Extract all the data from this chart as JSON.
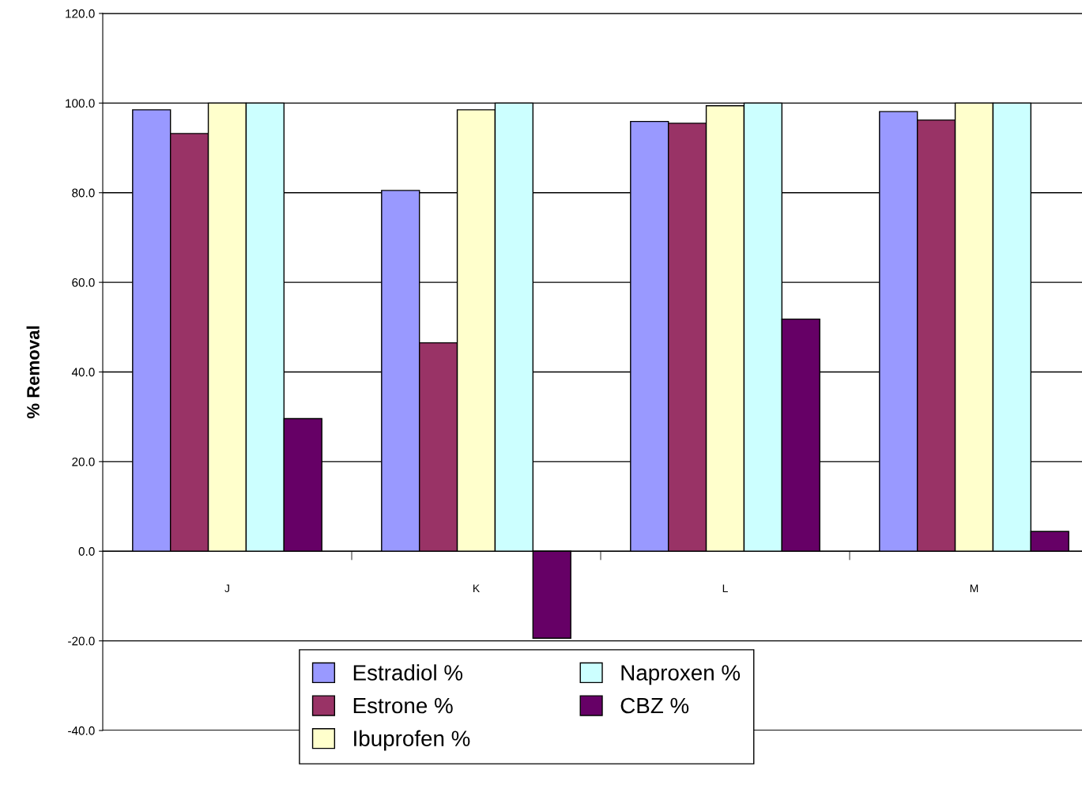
{
  "chart_data": {
    "type": "bar",
    "ylabel": "% Removal",
    "categories": [
      "J",
      "K",
      "L",
      "M"
    ],
    "series": [
      {
        "name": "Estradiol %",
        "color": "#9999ff",
        "values": [
          98.5,
          80.5,
          95.9,
          98.1
        ]
      },
      {
        "name": "Estrone %",
        "color": "#993366",
        "values": [
          93.2,
          46.5,
          95.5,
          96.2
        ]
      },
      {
        "name": "Ibuprofen %",
        "color": "#ffffcc",
        "values": [
          100,
          98.5,
          99.4,
          100
        ]
      },
      {
        "name": "Naproxen %",
        "color": "#ccffff",
        "values": [
          100,
          100,
          100,
          100
        ]
      },
      {
        "name": "CBZ %",
        "color": "#660066",
        "values": [
          29.6,
          -19.4,
          51.8,
          4.4
        ]
      }
    ],
    "ylim": [
      -40,
      120
    ],
    "yticks": [
      {
        "value": -40,
        "label": "-40.0"
      },
      {
        "value": -20,
        "label": "-20.0"
      },
      {
        "value": 0,
        "label": "0.0"
      },
      {
        "value": 20,
        "label": "20.0"
      },
      {
        "value": 40,
        "label": "40.0"
      },
      {
        "value": 60,
        "label": "60.0"
      },
      {
        "value": 80,
        "label": "80.0"
      },
      {
        "value": 100,
        "label": "100.0"
      },
      {
        "value": 120,
        "label": "120.0"
      }
    ],
    "grid": "y",
    "legend": "bottom"
  }
}
